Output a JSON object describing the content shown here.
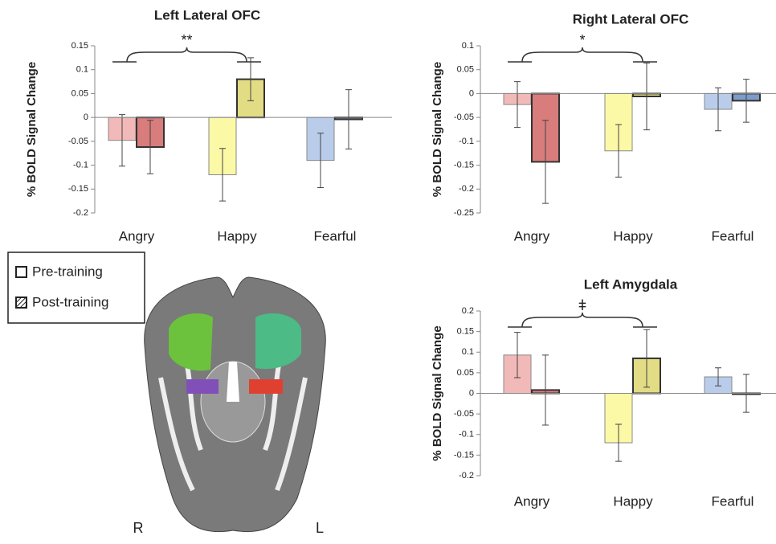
{
  "chart_data": [
    {
      "type": "bar",
      "title": "Left Lateral OFC",
      "ylabel": "% BOLD Signal Change",
      "annotation": "**",
      "categories": [
        "Angry",
        "Happy",
        "Fearful"
      ],
      "series": [
        {
          "name": "Pre-training",
          "colors": [
            "#f2b9b9",
            "#fbf9a6",
            "#b9cdea"
          ],
          "values": [
            -0.048,
            -0.12,
            -0.09
          ],
          "errors": [
            0.054,
            0.055,
            0.057
          ]
        },
        {
          "name": "Post-training",
          "colors": [
            "#d97c7c",
            "#e2dc84",
            "#7d9cc6"
          ],
          "values": [
            -0.062,
            0.08,
            -0.004
          ],
          "errors": [
            0.056,
            0.045,
            0.062
          ]
        }
      ],
      "ylim": [
        -0.2,
        0.15
      ],
      "yticks": [
        -0.2,
        -0.15,
        -0.1,
        -0.05,
        0,
        0.05,
        0.1,
        0.15
      ]
    },
    {
      "type": "bar",
      "title": "Right Lateral OFC",
      "ylabel": "% BOLD Signal Change",
      "annotation": "*",
      "categories": [
        "Angry",
        "Happy",
        "Fearful"
      ],
      "series": [
        {
          "name": "Pre-training",
          "colors": [
            "#f2b9b9",
            "#fbf9a6",
            "#b9cdea"
          ],
          "values": [
            -0.023,
            -0.12,
            -0.033
          ],
          "errors": [
            0.048,
            0.055,
            0.045
          ]
        },
        {
          "name": "Post-training",
          "colors": [
            "#d97c7c",
            "#e2dc84",
            "#7d9cc6"
          ],
          "values": [
            -0.143,
            -0.006,
            -0.015
          ],
          "errors": [
            0.087,
            0.07,
            0.045
          ]
        }
      ],
      "ylim": [
        -0.25,
        0.1
      ],
      "yticks": [
        -0.25,
        -0.2,
        -0.15,
        -0.1,
        -0.05,
        0,
        0.05,
        0.1
      ]
    },
    {
      "type": "bar",
      "title": "Left Amygdala",
      "ylabel": "% BOLD Signal Change",
      "annotation": "ǂ",
      "categories": [
        "Angry",
        "Happy",
        "Fearful"
      ],
      "series": [
        {
          "name": "Pre-training",
          "colors": [
            "#f2b9b9",
            "#fbf9a6",
            "#b9cdea"
          ],
          "values": [
            0.093,
            -0.12,
            0.04
          ],
          "errors": [
            0.055,
            0.045,
            0.022
          ]
        },
        {
          "name": "Post-training",
          "colors": [
            "#d97c7c",
            "#e2dc84",
            "#7d9cc6"
          ],
          "values": [
            0.008,
            0.085,
            0.0
          ],
          "errors": [
            0.085,
            0.07,
            0.046
          ]
        }
      ],
      "ylim": [
        -0.2,
        0.2
      ],
      "yticks": [
        -0.2,
        -0.15,
        -0.1,
        -0.05,
        0,
        0.05,
        0.1,
        0.15,
        0.2
      ]
    }
  ],
  "legend": [
    "Pre-training",
    "Post-training"
  ],
  "brain_labels": [
    "R",
    "L"
  ]
}
